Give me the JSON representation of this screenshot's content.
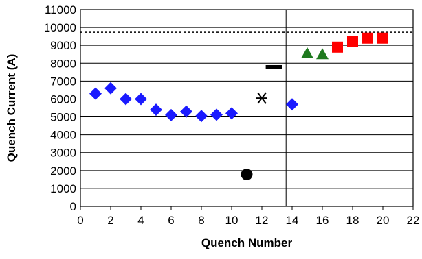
{
  "chart_data": {
    "type": "scatter",
    "title": "",
    "xlabel": "Quench Number",
    "ylabel": "Quench Current (A)",
    "xlim": [
      0,
      22
    ],
    "ylim": [
      0,
      11000
    ],
    "x_ticks": [
      "0",
      "2",
      "4",
      "6",
      "8",
      "10",
      "12",
      "14",
      "16",
      "18",
      "20",
      "22"
    ],
    "y_ticks": [
      "0",
      "1000",
      "2000",
      "3000",
      "4000",
      "5000",
      "6000",
      "7000",
      "8000",
      "9000",
      "10000",
      "11000"
    ],
    "grid": "horizontal",
    "legend": "none",
    "reference_line": {
      "y": 9750,
      "style": "dotted",
      "color": "#000000"
    },
    "separator_x": 13.6,
    "series": [
      {
        "marker": "diamond",
        "color": "#1a1aff",
        "x": [
          1,
          2,
          3,
          4,
          5,
          6,
          7,
          8,
          9,
          10,
          14
        ],
        "y": [
          6300,
          6600,
          6000,
          6000,
          5400,
          5100,
          5300,
          5050,
          5120,
          5200,
          5700
        ]
      },
      {
        "marker": "circle",
        "color": "#000000",
        "x": [
          11
        ],
        "y": [
          1780
        ]
      },
      {
        "marker": "asterisk",
        "color": "#000000",
        "x": [
          12
        ],
        "y": [
          6050
        ]
      },
      {
        "marker": "dash",
        "color": "#000000",
        "x": [
          12.8
        ],
        "y": [
          7800
        ]
      },
      {
        "marker": "triangle",
        "color": "#1f7a1f",
        "x": [
          15,
          16
        ],
        "y": [
          8550,
          8500
        ]
      },
      {
        "marker": "square",
        "color": "#ff0000",
        "x": [
          17,
          18,
          19,
          20
        ],
        "y": [
          8900,
          9200,
          9400,
          9400
        ]
      }
    ]
  }
}
